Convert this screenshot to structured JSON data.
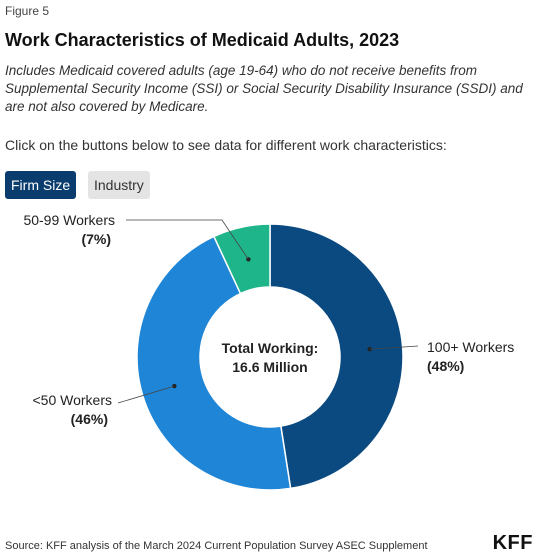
{
  "figure_label": "Figure 5",
  "title": "Work Characteristics of Medicaid Adults, 2023",
  "subtitle": "Includes Medicaid covered adults (age 19-64) who do not receive benefits from Supplemental Security Income (SSI) or Social Security Disability Insurance (SSDI) and are not also covered by Medicare.",
  "instructions": "Click on the buttons below to see data for different work characteristics:",
  "buttons": [
    {
      "label": "Firm Size",
      "active": true
    },
    {
      "label": "Industry",
      "active": false
    }
  ],
  "center_label": [
    "Total Working:",
    "16.6 Million"
  ],
  "source": "Source: KFF analysis of the March 2024 Current Population Survey ASEC Supplement",
  "logo": "KFF",
  "chart_data": {
    "type": "pie",
    "donut": true,
    "slices": [
      {
        "label": "100+ Workers",
        "value": 48,
        "value_label": "(48%)",
        "color": "#0a4a80"
      },
      {
        "label": "<50 Workers",
        "value": 46,
        "value_label": "(46%)",
        "color": "#1f85d6"
      },
      {
        "label": "50-99 Workers",
        "value": 7,
        "value_label": "(7%)",
        "color": "#1fb58a"
      }
    ]
  }
}
